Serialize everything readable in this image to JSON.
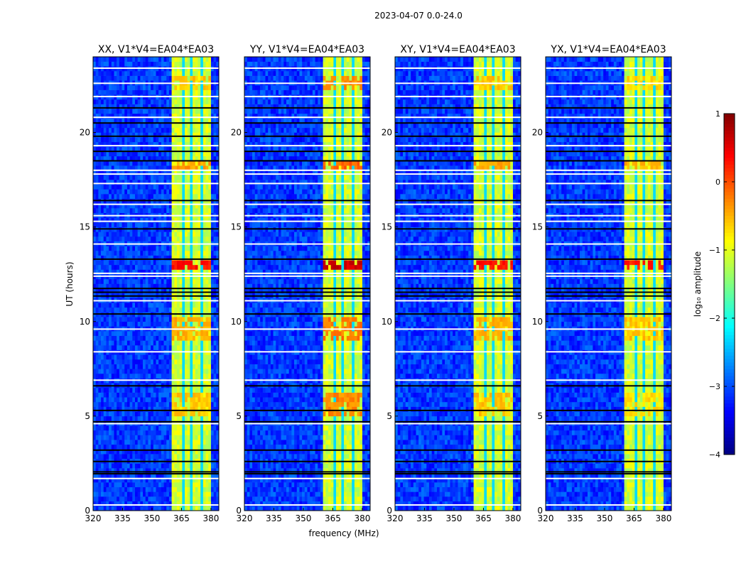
{
  "chart_data": {
    "type": "heatmap",
    "title": "2023-04-07 0.0-24.0",
    "xlabel": "frequency (MHz)",
    "ylabel": "UT (hours)",
    "xlim": [
      320,
      384
    ],
    "ylim": [
      0,
      24
    ],
    "xticks": [
      320,
      335,
      350,
      365,
      380
    ],
    "yticks": [
      0,
      5,
      10,
      15,
      20
    ],
    "panels": [
      {
        "title": "XX, V1*V4=EA04*EA03",
        "hot_boost": 0.0
      },
      {
        "title": "YY, V1*V4=EA04*EA03",
        "hot_boost": 0.3
      },
      {
        "title": "XY, V1*V4=EA04*EA03",
        "hot_boost": 0.0
      },
      {
        "title": "YX, V1*V4=EA04*EA03",
        "hot_boost": -0.1
      }
    ],
    "background_level": -3.1,
    "band": {
      "range_mhz": [
        360.5,
        380
      ],
      "level": -1.1,
      "notches_mhz": [
        365.5,
        370.2,
        374.9
      ]
    },
    "hot_rows_hours": [
      [
        12.7,
        13.2,
        0.3
      ],
      [
        9.0,
        10.2,
        -0.5
      ],
      [
        5.0,
        6.3,
        -0.6
      ],
      [
        22.3,
        23.0,
        -0.6
      ],
      [
        18.1,
        18.4,
        -0.4
      ]
    ],
    "flagged_white_hours": [
      0.3,
      1.7,
      4.6,
      6.9,
      8.4,
      9.6,
      11.1,
      12.4,
      12.55,
      14.1,
      15.3,
      15.6,
      16.2,
      17.3,
      17.8,
      18.0,
      19.3,
      20.8,
      21.9,
      22.6,
      23.4
    ],
    "flagged_black_hours": [
      1.95,
      2.05,
      2.6,
      3.2,
      4.7,
      5.3,
      6.6,
      10.4,
      11.35,
      11.55,
      11.75,
      13.3,
      14.9,
      16.4,
      18.5,
      19.0,
      19.8,
      20.5,
      21.3
    ],
    "colorbar": {
      "label": "log₁₀ amplitude",
      "range": [
        -4,
        1
      ],
      "ticks": [
        1,
        0,
        -1,
        -2,
        -3,
        -4
      ],
      "tick_labels": [
        "1",
        "0",
        "−1",
        "−2",
        "−3",
        "−4"
      ]
    }
  }
}
